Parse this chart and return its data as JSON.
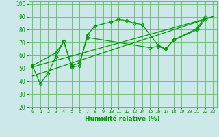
{
  "xlabel": "Humidité relative (%)",
  "bg_color": "#cce8e8",
  "grid_color": "#66bb66",
  "line_color": "#009900",
  "xlim": [
    -0.5,
    23.5
  ],
  "ylim": [
    20,
    102
  ],
  "xticks": [
    0,
    1,
    2,
    3,
    4,
    5,
    6,
    7,
    8,
    9,
    10,
    11,
    12,
    13,
    14,
    15,
    16,
    17,
    18,
    19,
    20,
    21,
    22,
    23
  ],
  "yticks": [
    20,
    30,
    40,
    50,
    60,
    70,
    80,
    90,
    100
  ],
  "series1_x": [
    0,
    1,
    2,
    3,
    4,
    5,
    6,
    7,
    8,
    10,
    11,
    12,
    13,
    14,
    16,
    17,
    18,
    21,
    22
  ],
  "series1_y": [
    52,
    38,
    46,
    59,
    71,
    51,
    52,
    76,
    83,
    86,
    88,
    87,
    85,
    84,
    68,
    65,
    72,
    81,
    90
  ],
  "series2_x": [
    0,
    3,
    4,
    5,
    6,
    7,
    15,
    16,
    17,
    18,
    21,
    22
  ],
  "series2_y": [
    52,
    62,
    71,
    52,
    54,
    74,
    66,
    67,
    65,
    72,
    80,
    88
  ],
  "trend1_x": [
    0,
    23
  ],
  "trend1_y": [
    44,
    90
  ],
  "trend2_x": [
    0,
    23
  ],
  "trend2_y": [
    51,
    90
  ]
}
